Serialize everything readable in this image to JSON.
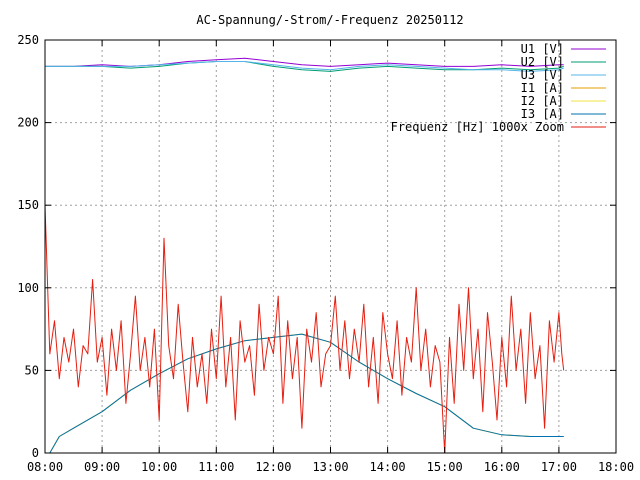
{
  "chart_data": {
    "type": "line",
    "title": "AC-Spannung/-Strom/-Frequenz 20250112",
    "xlabel": "",
    "ylabel": "",
    "xlim": [
      "08:00",
      "18:00"
    ],
    "ylim": [
      0,
      250
    ],
    "x_ticks": [
      "08:00",
      "09:00",
      "10:00",
      "11:00",
      "12:00",
      "13:00",
      "14:00",
      "15:00",
      "16:00",
      "17:00",
      "18:00"
    ],
    "y_ticks": [
      "0",
      "50",
      "100",
      "150",
      "200",
      "250"
    ],
    "grid": true,
    "legend_position": "top-right",
    "series": [
      {
        "name": "U1 [V]",
        "color": "#9400d3",
        "x": [
          "08:00",
          "08:30",
          "09:00",
          "09:30",
          "10:00",
          "10:30",
          "11:00",
          "11:30",
          "12:00",
          "12:30",
          "13:00",
          "13:30",
          "14:00",
          "14:30",
          "15:00",
          "15:30",
          "16:00",
          "16:30",
          "17:00",
          "17:05"
        ],
        "values": [
          234,
          234,
          235,
          234,
          235,
          237,
          238,
          239,
          237,
          235,
          234,
          235,
          236,
          235,
          234,
          234,
          235,
          234,
          235,
          235
        ]
      },
      {
        "name": "U2 [V]",
        "color": "#009e73",
        "x": [
          "08:00",
          "08:30",
          "09:00",
          "09:30",
          "10:00",
          "10:30",
          "11:00",
          "11:30",
          "12:00",
          "12:30",
          "13:00",
          "13:30",
          "14:00",
          "14:30",
          "15:00",
          "15:30",
          "16:00",
          "16:30",
          "17:00",
          "17:05"
        ],
        "values": [
          234,
          234,
          234,
          233,
          234,
          236,
          237,
          237,
          234,
          232,
          231,
          233,
          234,
          233,
          232,
          232,
          233,
          232,
          233,
          234
        ]
      },
      {
        "name": "U3 [V]",
        "color": "#56b4e9",
        "x": [
          "08:00",
          "08:30",
          "09:00",
          "09:30",
          "10:00",
          "10:30",
          "11:00",
          "11:30",
          "12:00",
          "12:30",
          "13:00",
          "13:30",
          "14:00",
          "14:30",
          "15:00",
          "15:30",
          "16:00",
          "16:30",
          "17:00",
          "17:05"
        ],
        "values": [
          234,
          234,
          234,
          234,
          235,
          236,
          237,
          237,
          235,
          233,
          232,
          234,
          235,
          234,
          233,
          232,
          232,
          231,
          232,
          233
        ]
      },
      {
        "name": "I1 [A]",
        "color": "#e69f00",
        "x": [
          "08:05",
          "08:15",
          "08:30",
          "09:00",
          "09:30",
          "10:00",
          "10:30",
          "11:00",
          "11:30",
          "12:00",
          "12:30",
          "13:00",
          "13:30",
          "14:00",
          "14:30",
          "15:00",
          "15:30",
          "16:00",
          "16:30",
          "17:00",
          "17:05"
        ],
        "values": [
          0,
          10,
          15,
          25,
          38,
          48,
          57,
          63,
          68,
          70,
          72,
          67,
          55,
          45,
          36,
          28,
          15,
          11,
          10,
          10,
          10
        ]
      },
      {
        "name": "I2 [A]",
        "color": "#f0e442",
        "x": [
          "08:05",
          "08:15",
          "08:30",
          "09:00",
          "09:30",
          "10:00",
          "10:30",
          "11:00",
          "11:30",
          "12:00",
          "12:30",
          "13:00",
          "13:30",
          "14:00",
          "14:30",
          "15:00",
          "15:30",
          "16:00",
          "16:30",
          "17:00",
          "17:05"
        ],
        "values": [
          0,
          10,
          15,
          25,
          38,
          48,
          57,
          63,
          68,
          70,
          72,
          67,
          55,
          45,
          36,
          28,
          15,
          11,
          10,
          10,
          10
        ]
      },
      {
        "name": "I3 [A]",
        "color": "#0072b2",
        "x": [
          "08:05",
          "08:15",
          "08:30",
          "09:00",
          "09:30",
          "10:00",
          "10:30",
          "11:00",
          "11:30",
          "12:00",
          "12:30",
          "13:00",
          "13:30",
          "14:00",
          "14:30",
          "15:00",
          "15:30",
          "16:00",
          "16:30",
          "17:00",
          "17:05"
        ],
        "values": [
          0,
          10,
          15,
          25,
          38,
          48,
          57,
          63,
          68,
          70,
          72,
          67,
          55,
          45,
          36,
          28,
          15,
          11,
          10,
          10,
          10
        ]
      },
      {
        "name": "Frequenz [Hz] 1000x Zoom",
        "color": "#e51e10",
        "x": [
          "08:00",
          "08:05",
          "08:10",
          "08:15",
          "08:20",
          "08:25",
          "08:30",
          "08:35",
          "08:40",
          "08:45",
          "08:50",
          "08:55",
          "09:00",
          "09:05",
          "09:10",
          "09:15",
          "09:20",
          "09:25",
          "09:30",
          "09:35",
          "09:40",
          "09:45",
          "09:50",
          "09:55",
          "10:00",
          "10:05",
          "10:10",
          "10:15",
          "10:20",
          "10:25",
          "10:30",
          "10:35",
          "10:40",
          "10:45",
          "10:50",
          "10:55",
          "11:00",
          "11:05",
          "11:10",
          "11:15",
          "11:20",
          "11:25",
          "11:30",
          "11:35",
          "11:40",
          "11:45",
          "11:50",
          "11:55",
          "12:00",
          "12:05",
          "12:10",
          "12:15",
          "12:20",
          "12:25",
          "12:30",
          "12:35",
          "12:40",
          "12:45",
          "12:50",
          "12:55",
          "13:00",
          "13:05",
          "13:10",
          "13:15",
          "13:20",
          "13:25",
          "13:30",
          "13:35",
          "13:40",
          "13:45",
          "13:50",
          "13:55",
          "14:00",
          "14:05",
          "14:10",
          "14:15",
          "14:20",
          "14:25",
          "14:30",
          "14:35",
          "14:40",
          "14:45",
          "14:50",
          "14:55",
          "15:00",
          "15:05",
          "15:10",
          "15:15",
          "15:20",
          "15:25",
          "15:30",
          "15:35",
          "15:40",
          "15:45",
          "15:50",
          "15:55",
          "16:00",
          "16:05",
          "16:10",
          "16:15",
          "16:20",
          "16:25",
          "16:30",
          "16:35",
          "16:40",
          "16:45",
          "16:50",
          "16:55",
          "17:00",
          "17:03",
          "17:05"
        ],
        "values": [
          150,
          60,
          80,
          45,
          70,
          55,
          75,
          40,
          65,
          60,
          105,
          55,
          70,
          35,
          75,
          50,
          80,
          30,
          60,
          95,
          50,
          70,
          40,
          75,
          20,
          130,
          65,
          45,
          90,
          55,
          25,
          70,
          40,
          60,
          30,
          75,
          45,
          95,
          40,
          70,
          20,
          80,
          55,
          65,
          35,
          90,
          50,
          70,
          60,
          95,
          30,
          80,
          45,
          70,
          15,
          75,
          55,
          85,
          40,
          60,
          65,
          95,
          50,
          80,
          45,
          75,
          55,
          90,
          40,
          70,
          30,
          85,
          60,
          45,
          80,
          35,
          70,
          55,
          100,
          50,
          75,
          40,
          65,
          55,
          0,
          70,
          30,
          90,
          50,
          100,
          45,
          75,
          25,
          85,
          55,
          20,
          70,
          40,
          95,
          50,
          75,
          30,
          85,
          45,
          65,
          15,
          80,
          55,
          85,
          60,
          50
        ]
      }
    ]
  }
}
